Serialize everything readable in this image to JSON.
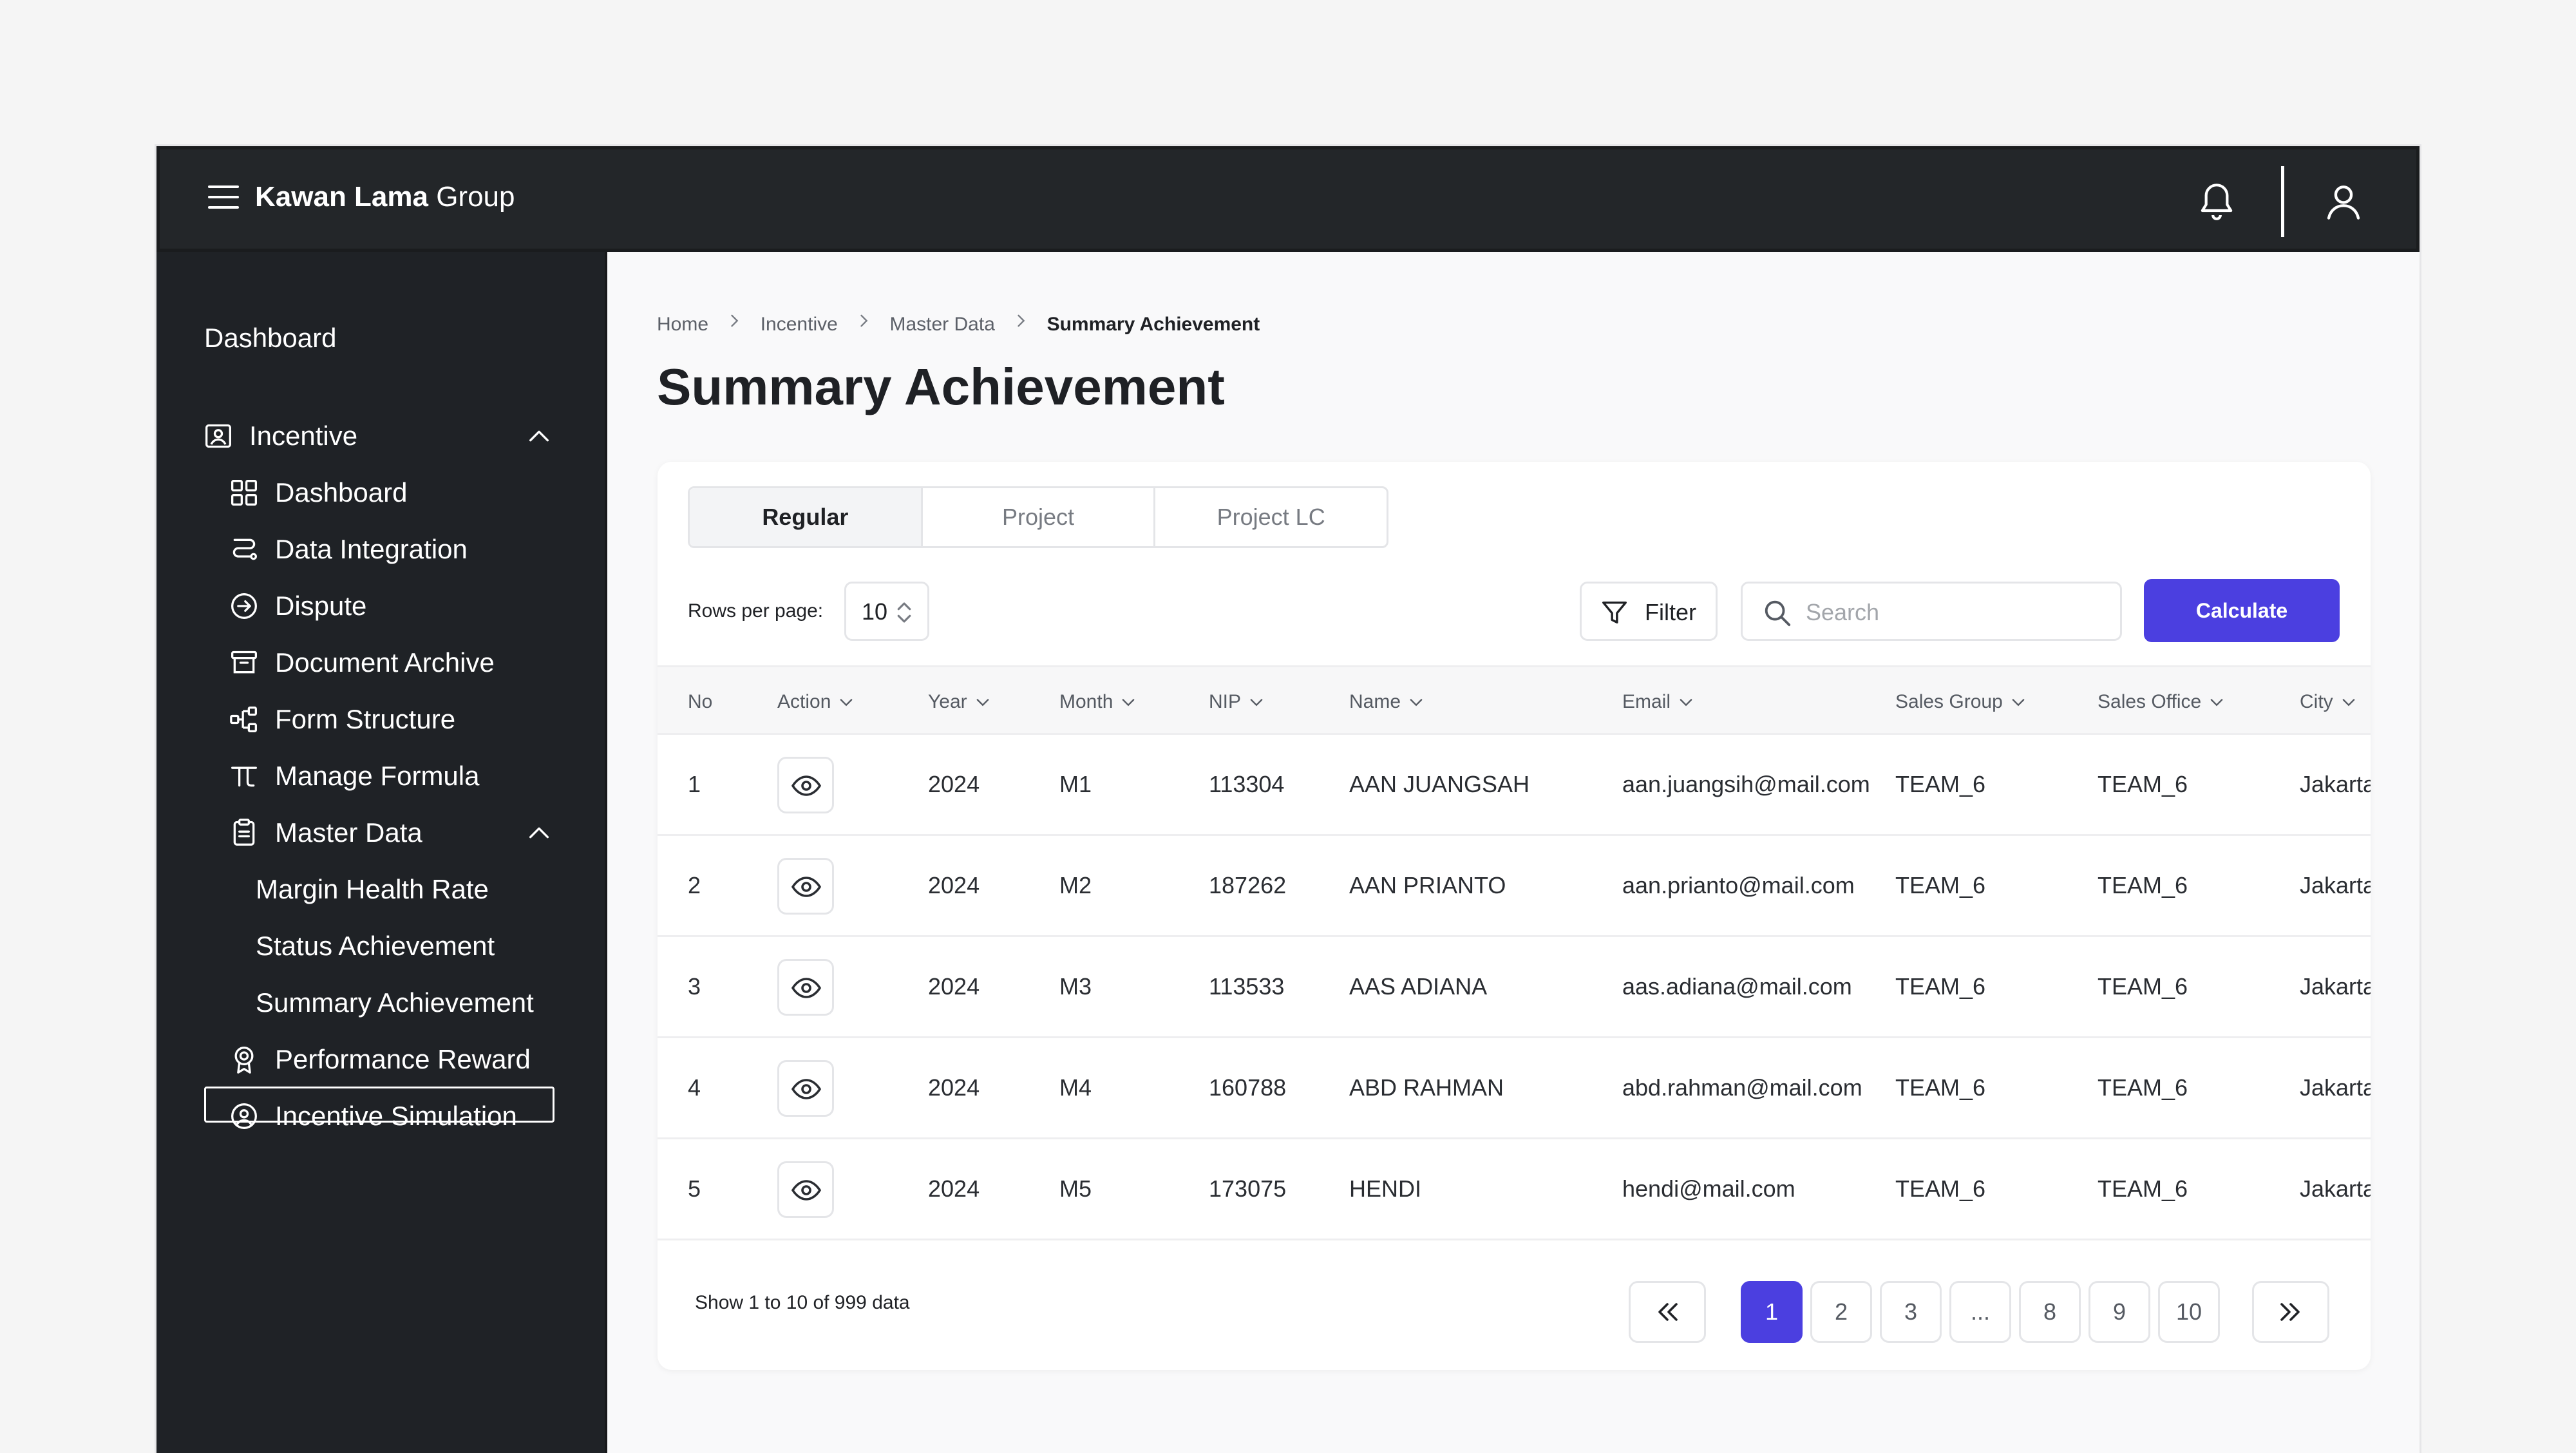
{
  "header": {
    "brand_bold": "Kawan Lama",
    "brand_rest": " Group"
  },
  "sidebar": {
    "dashboard": "Dashboard",
    "incentive": "Incentive",
    "items": [
      {
        "label": "Dashboard",
        "icon": "grid-icon"
      },
      {
        "label": "Data Integration",
        "icon": "route-icon"
      },
      {
        "label": "Dispute",
        "icon": "arrow-circle-icon"
      },
      {
        "label": "Document Archive",
        "icon": "archive-icon"
      },
      {
        "label": "Form Structure",
        "icon": "hierarchy-icon"
      },
      {
        "label": "Manage Formula",
        "icon": "formula-icon"
      },
      {
        "label": "Master Data",
        "icon": "clipboard-icon"
      }
    ],
    "master_data_items": [
      "Margin Health Rate",
      "Status Achievement",
      "Summary Achievement"
    ],
    "performance_reward": "Performance Reward",
    "incentive_simulation": "Incentive Simulation"
  },
  "breadcrumb": [
    "Home",
    "Incentive",
    "Master Data",
    "Summary Achievement"
  ],
  "page_title": "Summary Achievement",
  "tabs": [
    "Regular",
    "Project",
    "Project LC"
  ],
  "toolbar": {
    "rows_label": "Rows per page:",
    "rows_value": "10",
    "filter_label": "Filter",
    "search_placeholder": "Search",
    "calculate_label": "Calculate"
  },
  "table": {
    "columns": [
      "No",
      "Action",
      "Year",
      "Month",
      "NIP",
      "Name",
      "Email",
      "Sales Group",
      "Sales Office",
      "City"
    ],
    "rows": [
      {
        "no": "1",
        "year": "2024",
        "month": "M1",
        "nip": "113304",
        "name": "AAN JUANGSAH",
        "email": "aan.juangsih@mail.com",
        "sales_group": "TEAM_6",
        "sales_office": "TEAM_6",
        "city": "Jakarta"
      },
      {
        "no": "2",
        "year": "2024",
        "month": "M2",
        "nip": "187262",
        "name": "AAN PRIANTO",
        "email": "aan.prianto@mail.com",
        "sales_group": "TEAM_6",
        "sales_office": "TEAM_6",
        "city": "Jakarta"
      },
      {
        "no": "3",
        "year": "2024",
        "month": "M3",
        "nip": "113533",
        "name": "AAS ADIANA",
        "email": "aas.adiana@mail.com",
        "sales_group": "TEAM_6",
        "sales_office": "TEAM_6",
        "city": "Jakarta"
      },
      {
        "no": "4",
        "year": "2024",
        "month": "M4",
        "nip": "160788",
        "name": "ABD RAHMAN",
        "email": "abd.rahman@mail.com",
        "sales_group": "TEAM_6",
        "sales_office": "TEAM_6",
        "city": "Jakarta"
      },
      {
        "no": "5",
        "year": "2024",
        "month": "M5",
        "nip": "173075",
        "name": "HENDI",
        "email": "hendi@mail.com",
        "sales_group": "TEAM_6",
        "sales_office": "TEAM_6",
        "city": "Jakarta"
      }
    ]
  },
  "footer": {
    "summary": "Show 1 to 10 of 999 data",
    "pages": [
      "1",
      "2",
      "3",
      "...",
      "8",
      "9",
      "10"
    ],
    "current_page": "1"
  },
  "colors": {
    "accent": "#4b3fe0",
    "topbar": "#232629",
    "sidebar": "#1f2226"
  }
}
